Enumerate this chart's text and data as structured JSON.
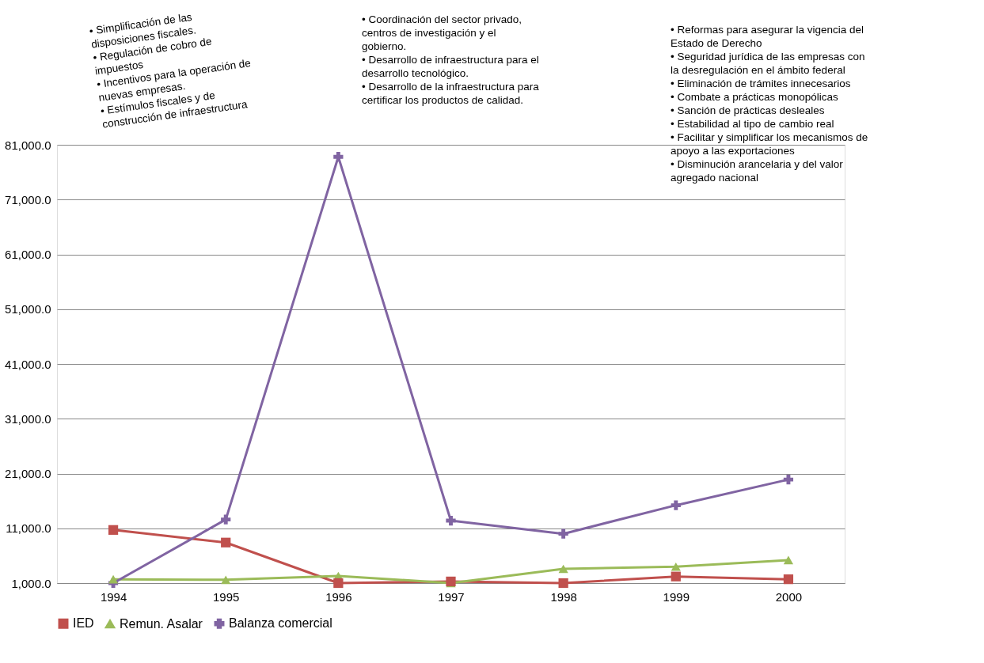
{
  "chart_data": {
    "type": "line",
    "categories": [
      "1994",
      "1995",
      "1996",
      "1997",
      "1998",
      "1999",
      "2000"
    ],
    "series": [
      {
        "name": "IED",
        "color": "#c0504d",
        "marker": "square",
        "values": [
          10700,
          8400,
          1000,
          1300,
          1000,
          2200,
          1700
        ]
      },
      {
        "name": "Remun. Asalar",
        "color": "#9bbb59",
        "marker": "triangle",
        "values": [
          1700,
          1600,
          2300,
          1000,
          3600,
          4000,
          5200
        ]
      },
      {
        "name": "Balanza comercial",
        "color": "#8064a2",
        "marker": "cross",
        "values": [
          1000,
          12600,
          78800,
          12400,
          10000,
          15200,
          19900
        ]
      }
    ],
    "ylim": [
      1000,
      81000
    ],
    "yticks": [
      {
        "value": 1000,
        "label": "1,000.0"
      },
      {
        "value": 11000,
        "label": "11,000.0"
      },
      {
        "value": 21000,
        "label": "21,000.0"
      },
      {
        "value": 31000,
        "label": "31,000.0"
      },
      {
        "value": 41000,
        "label": "41,000.0"
      },
      {
        "value": 51000,
        "label": "51,000.0"
      },
      {
        "value": 61000,
        "label": "61,000.0"
      },
      {
        "value": 71000,
        "label": "71,000.0"
      },
      {
        "value": 81000,
        "label": "81,000.0"
      }
    ],
    "grid": "y",
    "legend": "bottom",
    "line_style": "solid",
    "annotations": [
      "• Simplificación de las\n   disposiciones fiscales.\n• Regulación de cobro de\n   impuestos\n• Incentivos para la operación de\n   nuevas empresas.\n• Estímulos fiscales y de\n   construcción de infraestructura",
      "• Coordinación del sector privado,\n   centros de investigación y el\n   gobierno.\n• Desarrollo de infraestructura para el\n   desarrollo tecnológico.\n• Desarrollo de la infraestructura para\n   certificar los productos de calidad.",
      "• Reformas para asegurar la vigencia del\n   Estado de Derecho\n• Seguridad jurídica de las empresas con\n   la desregulación en el ámbito federal\n• Eliminación de trámites innecesarios\n• Combate a prácticas monopólicas\n• Sanción de prácticas desleales\n• Estabilidad al tipo de cambio real\n• Facilitar y simplificar los mecanismos de\n   apoyo a las exportaciones\n• Disminución arancelaria y del valor\n   agregado nacional"
    ]
  }
}
